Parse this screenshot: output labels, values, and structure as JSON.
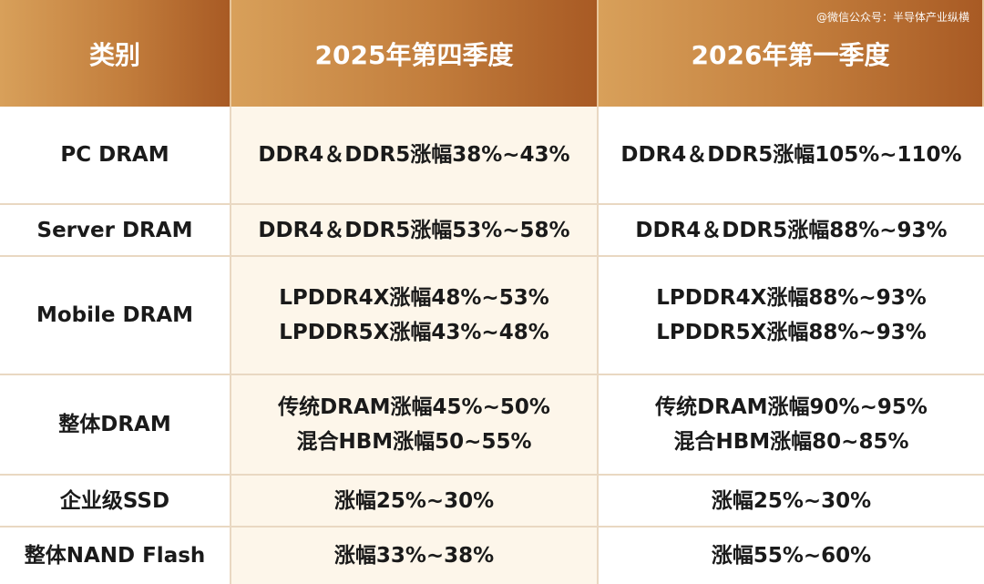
{
  "watermark": "@微信公众号：半导体产业纵横",
  "headers": [
    "类别",
    "2025年第四季度",
    "2026年第一季度"
  ],
  "rows": [
    {
      "category": "PC DRAM",
      "q4_2025": [
        "DDR4＆DDR5涨幅38%~43%"
      ],
      "q1_2026": [
        "DDR4＆DDR5涨幅105%~110%"
      ]
    },
    {
      "category": "Server DRAM",
      "q4_2025": [
        "DDR4＆DDR5涨幅53%~58%"
      ],
      "q1_2026": [
        "DDR4＆DDR5涨幅88%~93%"
      ]
    },
    {
      "category": "Mobile DRAM",
      "q4_2025": [
        "LPDDR4X涨幅48%~53%",
        "LPDDR5X涨幅43%~48%"
      ],
      "q1_2026": [
        "LPDDR4X涨幅88%~93%",
        "LPDDR5X涨幅88%~93%"
      ]
    },
    {
      "category": "整体DRAM",
      "q4_2025": [
        "传统DRAM涨幅45%~50%",
        "混合HBM涨幅50~55%"
      ],
      "q1_2026": [
        "传统DRAM涨幅90%~95%",
        "混合HBM涨幅80~85%"
      ]
    },
    {
      "category": "企业级SSD",
      "q4_2025": [
        "涨幅25%~30%"
      ],
      "q1_2026": [
        "涨幅25%~30%"
      ]
    },
    {
      "category": "整体NAND Flash",
      "q4_2025": [
        "涨幅33%~38%"
      ],
      "q1_2026": [
        "涨幅55%~60%"
      ]
    }
  ]
}
